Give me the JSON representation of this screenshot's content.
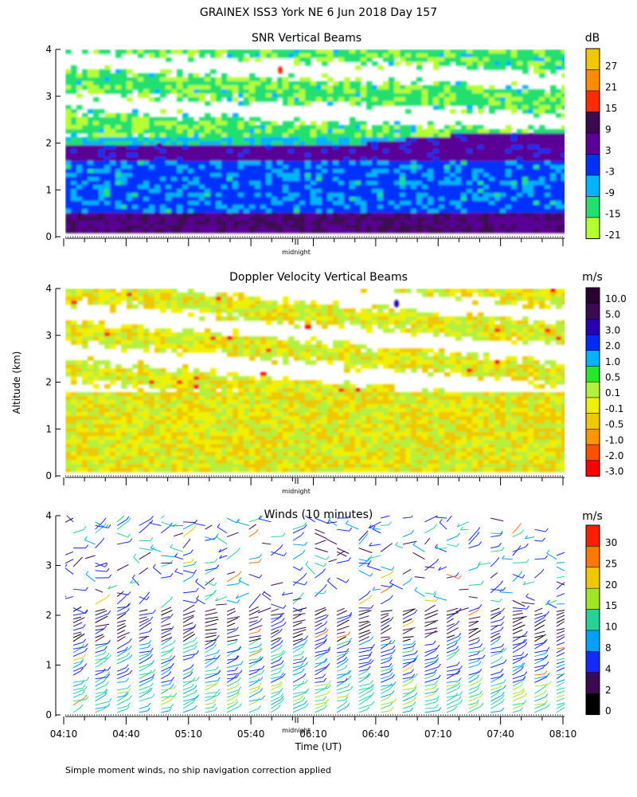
{
  "header": {
    "title": "GRAINEX ISS3 York NE   6 Jun 2018 Day 157"
  },
  "shared": {
    "ylabel": "Altitude (km)",
    "midnight_label": "midnight",
    "xlabel": "Time (UT)",
    "x_tick_labels": [
      "04:10",
      "04:40",
      "05:10",
      "05:40",
      "06:10",
      "06:40",
      "07:10",
      "07:40",
      "08:10"
    ]
  },
  "footer": {
    "note": "Simple moment winds, no ship navigation correction applied"
  },
  "panels": {
    "snr": {
      "title": "SNR Vertical Beams",
      "unit": "dB",
      "scale_labels": [
        "27",
        "21",
        "15",
        "9",
        "3",
        "-3",
        "-9",
        "-15",
        "-21"
      ]
    },
    "doppler": {
      "title": "Doppler Velocity Vertical Beams",
      "unit": "m/s",
      "scale_labels": [
        "10.0",
        "5.0",
        "3.0",
        "2.0",
        "1.0",
        "0.5",
        "0.1",
        "-0.1",
        "-0.5",
        "-1.0",
        "-2.0",
        "-3.0"
      ]
    },
    "winds": {
      "title": "Winds (10 minutes)",
      "unit": "m/s",
      "scale_labels": [
        "30",
        "25",
        "20",
        "15",
        "10",
        "8",
        "4",
        "2",
        "0"
      ]
    }
  },
  "chart_data": [
    {
      "type": "heatmap",
      "title": "SNR Vertical Beams",
      "ylabel": "Altitude (km)",
      "ylim": [
        0,
        4
      ],
      "y_ticks": [
        0,
        1,
        2,
        3,
        4
      ],
      "colorbar": {
        "unit": "dB",
        "levels": [
          27,
          21,
          15,
          9,
          3,
          -3,
          -9,
          -15,
          -21
        ],
        "colors": [
          "#f0c800",
          "#ff8c00",
          "#ff2a00",
          "#3c0a50",
          "#5a0096",
          "#0030ff",
          "#00b4ff",
          "#20e070",
          "#b4ff30"
        ]
      },
      "layers": [
        {
          "altitude_km": [
            0.15,
            0.55
          ],
          "snr_db": 9
        },
        {
          "altitude_km": [
            0.55,
            1.7
          ],
          "snr_db": -3
        },
        {
          "altitude_km": [
            1.7,
            2.0
          ],
          "snr_db": 3
        },
        {
          "altitude_km": [
            2.0,
            4.0
          ],
          "snr_db": -15
        }
      ]
    },
    {
      "type": "heatmap",
      "title": "Doppler Velocity Vertical Beams",
      "ylabel": "Altitude (km)",
      "ylim": [
        0,
        4
      ],
      "y_ticks": [
        0,
        1,
        2,
        3,
        4
      ],
      "colorbar": {
        "unit": "m/s",
        "levels": [
          10.0,
          5.0,
          3.0,
          2.0,
          1.0,
          0.5,
          0.1,
          -0.1,
          -0.5,
          -1.0,
          -2.0,
          -3.0
        ],
        "colors": [
          "#2a0030",
          "#3c0a50",
          "#2800b4",
          "#0028ff",
          "#00b4ff",
          "#28e628",
          "#b4f03c",
          "#f0f000",
          "#f0c800",
          "#ff9600",
          "#ff5000",
          "#ff0000"
        ]
      },
      "layers": [
        {
          "altitude_km": [
            0.15,
            1.8
          ],
          "velocity_ms": -0.1
        },
        {
          "altitude_km": [
            1.8,
            4.0
          ],
          "velocity_ms": 0.1
        }
      ]
    },
    {
      "type": "scatter",
      "title": "Winds (10 minutes)",
      "xlabel": "Time (UT)",
      "ylabel": "Altitude (km)",
      "ylim": [
        0,
        4
      ],
      "y_ticks": [
        0,
        1,
        2,
        3,
        4
      ],
      "x_ticks": [
        "04:10",
        "04:40",
        "05:10",
        "05:40",
        "06:10",
        "06:40",
        "07:10",
        "07:40",
        "08:10"
      ],
      "colorbar": {
        "unit": "m/s",
        "levels": [
          30,
          25,
          20,
          15,
          10,
          8,
          4,
          2,
          0
        ],
        "colors": [
          "#ff1e00",
          "#ff7800",
          "#f0c800",
          "#a0e628",
          "#28d296",
          "#00a0ff",
          "#1428ff",
          "#3c0a50",
          "#000000"
        ]
      }
    }
  ]
}
